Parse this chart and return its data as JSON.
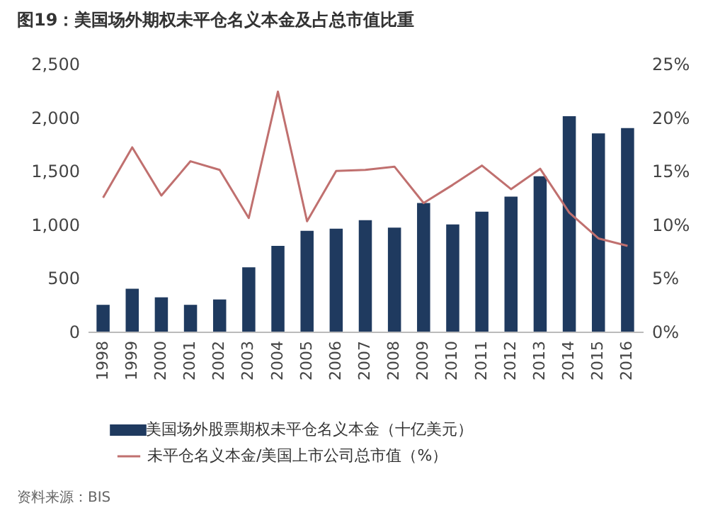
{
  "chart_data": {
    "type": "bar",
    "title": "图19：美国场外期权未平仓名义本金及占总市值比重",
    "categories": [
      "1998",
      "1999",
      "2000",
      "2001",
      "2002",
      "2003",
      "2004",
      "2005",
      "2006",
      "2007",
      "2008",
      "2009",
      "2010",
      "2011",
      "2012",
      "2013",
      "2014",
      "2015",
      "2016"
    ],
    "series": [
      {
        "name": "美国场外股票期权未平仓名义本金（十亿美元）",
        "color": "#1f3a5f",
        "values": [
          250,
          400,
          320,
          250,
          300,
          600,
          800,
          940,
          960,
          1040,
          970,
          1200,
          1000,
          1120,
          1260,
          1450,
          2010,
          1850,
          1900
        ]
      },
      {
        "name": "未平仓名义本金/美国上市公司总市值（%）",
        "type": "line",
        "axis": "y2",
        "color": "#c0706f",
        "values": [
          12.5,
          17.2,
          12.7,
          15.9,
          15.1,
          10.6,
          22.4,
          10.3,
          15.0,
          15.1,
          15.4,
          12.0,
          13.7,
          15.5,
          13.3,
          15.2,
          11.1,
          8.7,
          8.0
        ]
      }
    ],
    "ylim": [
      0,
      2500
    ],
    "yticks": [
      0,
      500,
      {
        "value": 1000,
        "label": "1,000"
      },
      {
        "value": 1500,
        "label": "1,500"
      },
      {
        "value": 2000,
        "label": "2,000"
      },
      {
        "value": 2500,
        "label": "2,500"
      }
    ],
    "y2lim": [
      0,
      25
    ],
    "y2ticks": [
      {
        "value": 0,
        "label": "0%"
      },
      {
        "value": 5,
        "label": "5%"
      },
      {
        "value": 10,
        "label": "10%"
      },
      {
        "value": 15,
        "label": "15%"
      },
      {
        "value": 20,
        "label": "20%"
      },
      {
        "value": 25,
        "label": "25%"
      }
    ],
    "legend": "bottom",
    "annotations": [
      "资料来源：BIS"
    ]
  }
}
